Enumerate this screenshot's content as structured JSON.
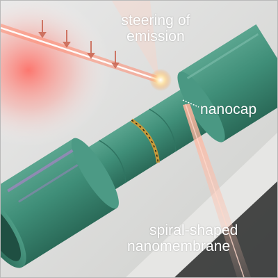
{
  "labels": {
    "steering_line1": "steering of",
    "steering_line2": "emission",
    "nanocap": "nanocap",
    "spiral_line1": "spiral-shaped",
    "spiral_line2": "nanomembrane"
  },
  "colors": {
    "membrane": "#3f8e78",
    "membrane_dark": "#215446",
    "laser": "#ff6a4d",
    "nanocap": "#c89a3a",
    "substrate": "#d7d8d6"
  },
  "icons": [
    "laser-beam",
    "emission-beam",
    "nanocap-ring",
    "spiral-tube"
  ]
}
